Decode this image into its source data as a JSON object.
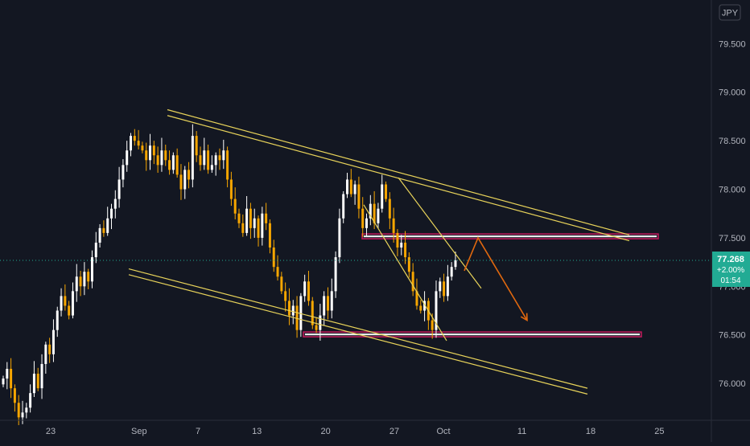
{
  "symbol_currency": "JPY",
  "current_price": {
    "value": 77.268,
    "price_text": "77.268",
    "change_text": "+2.00%",
    "countdown_text": "01:54",
    "color": "#22ab94"
  },
  "colors": {
    "background": "#131722",
    "up_candle": "#ffffff",
    "down_candle": "#f7a600",
    "channel_lines": "#e8d35a",
    "zone_border": "#c2185b",
    "zone_fill": "#ffffff",
    "arrow": "#e0680f",
    "axis_text": "#b2b5be"
  },
  "chart_data": {
    "type": "candlestick",
    "y_axis": {
      "ticks": [
        76.0,
        76.5,
        77.0,
        77.5,
        78.0,
        78.5,
        79.0,
        79.5
      ],
      "tick_labels": [
        "76.000",
        "76.500",
        "77.000",
        "77.500",
        "78.000",
        "78.500",
        "79.000",
        "79.500"
      ],
      "ylim": [
        75.62,
        79.95
      ]
    },
    "x_axis": {
      "tick_labels": [
        "23",
        "Sep",
        "7",
        "13",
        "20",
        "27",
        "Oct",
        "11",
        "18",
        "25"
      ],
      "tick_offsets_days": [
        0,
        9,
        15,
        21,
        28,
        35,
        40,
        48,
        55,
        62
      ]
    },
    "series_close": [
      76.05,
      76.15,
      75.95,
      75.8,
      75.65,
      75.7,
      75.75,
      75.9,
      76.1,
      75.95,
      76.2,
      76.4,
      76.3,
      76.55,
      76.75,
      76.9,
      76.8,
      76.7,
      76.95,
      77.1,
      77.0,
      77.15,
      77.05,
      77.3,
      77.45,
      77.6,
      77.55,
      77.7,
      77.8,
      77.9,
      78.1,
      78.25,
      78.4,
      78.55,
      78.5,
      78.45,
      78.4,
      78.3,
      78.45,
      78.35,
      78.25,
      78.4,
      78.3,
      78.2,
      78.35,
      78.15,
      78.0,
      78.2,
      78.1,
      78.55,
      78.35,
      78.25,
      78.4,
      78.2,
      78.25,
      78.35,
      78.3,
      78.4,
      78.1,
      77.9,
      77.75,
      77.65,
      77.55,
      77.8,
      77.6,
      77.7,
      77.5,
      77.75,
      77.65,
      77.4,
      77.2,
      77.1,
      76.95,
      76.85,
      76.7,
      76.8,
      76.55,
      76.9,
      77.05,
      76.85,
      76.6,
      76.55,
      76.7,
      76.9,
      76.75,
      76.95,
      77.3,
      77.7,
      77.95,
      78.1,
      77.95,
      78.05,
      77.8,
      77.6,
      77.7,
      77.85,
      77.65,
      77.8,
      78.05,
      77.9,
      77.7,
      77.55,
      77.4,
      77.45,
      77.3,
      77.15,
      76.95,
      76.8,
      76.75,
      76.85,
      76.65,
      76.55,
      76.95,
      77.05,
      76.9,
      77.1,
      77.2,
      77.268
    ],
    "annotations": {
      "upper_channel": {
        "points": [
          [
            208,
            78.82
          ],
          [
            782,
            77.53
          ]
        ],
        "offset_price": -0.06
      },
      "lower_channel": {
        "points": [
          [
            160,
            77.12
          ],
          [
            730,
            75.89
          ]
        ],
        "offset_price": 0.06
      },
      "wedge_lines": [
        {
          "points": [
            [
              495,
              78.12
            ],
            [
              598,
              76.98
            ]
          ]
        },
        {
          "points": [
            [
              452,
              77.84
            ],
            [
              555,
              76.44
            ]
          ]
        }
      ],
      "resistance_zone": {
        "x_start": 450,
        "x_end": 818,
        "price_top": 77.54,
        "price_bottom": 77.49
      },
      "support_zone": {
        "x_start": 377,
        "x_end": 797,
        "price_top": 76.53,
        "price_bottom": 76.48
      },
      "projected_path": [
        [
          577,
          77.16
        ],
        [
          594,
          77.5
        ],
        [
          655,
          76.65
        ]
      ]
    }
  }
}
